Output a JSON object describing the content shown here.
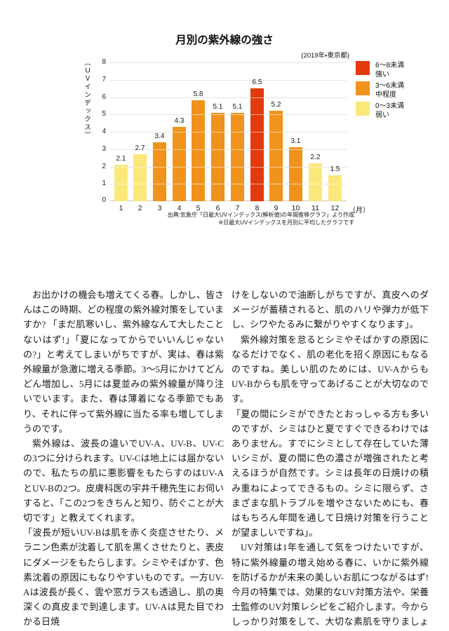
{
  "chart": {
    "title": "月別の紫外線の強さ",
    "subtitle": "(2019年・東京都)",
    "y_axis_label": "（ＵＶインデックス）",
    "x_axis_unit": "（月）",
    "y_ticks": [
      0,
      1,
      2,
      3,
      4,
      5,
      6,
      7,
      8
    ],
    "grid_color": "#c3c3c3",
    "legend": [
      {
        "range": "6～8未満",
        "level": "強い",
        "color": "#e23a0d"
      },
      {
        "range": "3～6未満",
        "level": "中程度",
        "color": "#f0931d"
      },
      {
        "range": "0～3未満",
        "level": "弱い",
        "color": "#fae97a"
      }
    ],
    "source_line1": "出典:気象庁「日最大UVインデックス(解析値)の年間推移グラフ」より作成",
    "source_line2": "※日最大UVインデックスを月別に平均したグラフです"
  },
  "chart_data": {
    "type": "bar",
    "title": "月別の紫外線の強さ",
    "subtitle": "(2019年・東京都)",
    "categories": [
      "1",
      "2",
      "3",
      "4",
      "5",
      "6",
      "7",
      "8",
      "9",
      "10",
      "11",
      "12"
    ],
    "values": [
      2.1,
      2.7,
      3.4,
      4.3,
      5.8,
      5.1,
      5.1,
      6.5,
      5.2,
      3.1,
      2.2,
      1.5
    ],
    "bar_colors": [
      "#fae97a",
      "#fae97a",
      "#f0931d",
      "#f0931d",
      "#f0931d",
      "#f0931d",
      "#f0931d",
      "#e23a0d",
      "#f0931d",
      "#f0931d",
      "#fae97a",
      "#fae97a"
    ],
    "xlabel": "（月）",
    "ylabel": "（ＵＶインデックス）",
    "ylim": [
      0,
      8
    ],
    "grid": true,
    "legend_position": "right",
    "legend_entries": [
      "6～8未満 強い",
      "3～6未満 中程度",
      "0～3未満 弱い"
    ],
    "color_rule": "0～3未満=弱い(黄), 3～6未満=中程度(橙), 6～8未満=強い(赤)"
  },
  "article": {
    "left_column": [
      {
        "indent": true,
        "text": "お出かけの機会も増えてくる春。しかし、皆さんはこの時期、どの程度の紫外線対策をしていますか? 「まだ肌寒いし、紫外線なんて大したことないはず!」「夏になってからでいいんじゃないの?」と考えてしまいがちですが、実は、春は紫外線量が急激に増える季節。3～5月にかけてどんどん増加し、5月には夏並みの紫外線量が降り注いでいます。また、春は薄着になる季節でもあり、それに伴って紫外線に当たる率も増してしまうのです。"
      },
      {
        "indent": true,
        "text": "紫外線は、波長の違いでUV-A、UV-B、UV-Cの3つに分けられます。UV-Cは地上には届かないので、私たちの肌に悪影響をもたらすのはUV-AとUV-Bの2つ。皮膚科医の宇井千穂先生にお伺いすると、「この2つをきちんと知り、防ぐことが大切です」と教えてくれます。"
      },
      {
        "indent": false,
        "text": "「波長が短いUV-Bは肌を赤く炎症させたり、メラニン色素が沈着して肌を黒くさせたりと、表皮にダメージをもたらします。シミやそばかす、色素沈着の原因にもなりやすいものです。一方UV-Aは波長が長く、雲や窓ガラスも透過し、肌の奥深くの真皮まで到達します。UV-Aは見た目でわかる日焼"
      }
    ],
    "right_column": [
      {
        "indent": false,
        "text": "けをしないので油断しがちですが、真皮へのダメージが蓄積されると、肌のハリや弾力が低下し、シワやたるみに繋がりやすくなります」。"
      },
      {
        "indent": true,
        "text": "紫外線対策を怠るとシミやそばかすの原因になるだけでなく、肌の老化を招く原因にもなるのですね。美しい肌のためには、UV-AからもUV-Bからも肌を守ってあげることが大切なのです。"
      },
      {
        "indent": false,
        "text": "「夏の間にシミができたとおっしゃる方も多いのですが、シミはひと夏ですぐできるわけではありません。すでにシミとして存在していた薄いシミが、夏の間に色の濃さが増強されたと考えるほうが自然です。シミは長年の日焼けの積み重ねによってできるもの。シミに限らず、さまざまな肌トラブルを増やさないためにも、春はもちろん年間を通して日焼け対策を行うことが望ましいですね」。"
      },
      {
        "indent": true,
        "text": "UV対策は1年を通して気をつけたいですが、特に紫外線量の増え始める春に、いかに紫外線を防げるかが未来の美しいお肌につながるはず! 今月の特集では、効果的なUV対策方法や、栄養士監修のUV対策レシピをご紹介します。今からしっかり対策をして、大切な素肌を守りましょう。"
      }
    ]
  }
}
